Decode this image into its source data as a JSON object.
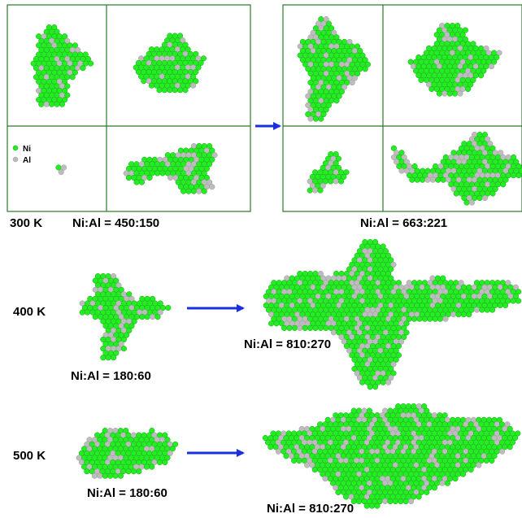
{
  "colors": {
    "ni": "#22ee22",
    "al": "#bdbdbd",
    "frame": "#2a7a2a",
    "arrow": "#1a2fe0",
    "text": "#000000"
  },
  "legend": {
    "ni": "Ni",
    "al": "Al"
  },
  "rows": [
    {
      "temperature": "300 K",
      "before_ratio": "Ni:Al = 450:150",
      "after_ratio": "Ni:Al = 663:221"
    },
    {
      "temperature": "400 K",
      "before_ratio": "Ni:Al = 180:60",
      "after_ratio": "Ni:Al = 810:270"
    },
    {
      "temperature": "500 K",
      "before_ratio": "Ni:Al = 180:60",
      "after_ratio": "Ni:Al = 810:270"
    }
  ]
}
